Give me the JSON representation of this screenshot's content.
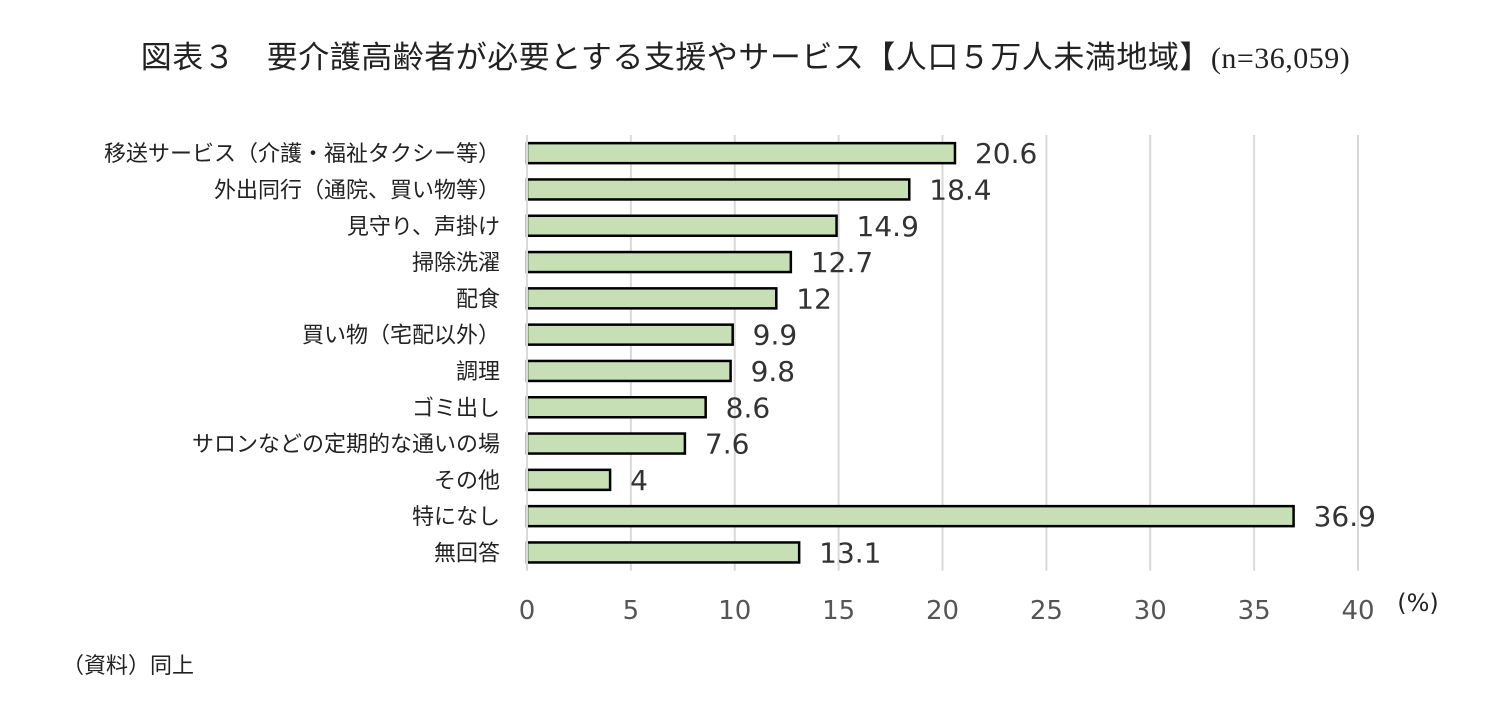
{
  "title": "図表３　要介護高齢者が必要とする支援やサービス【人口５万人未満地域】",
  "title_n": "(n=36,059)",
  "source": "（資料）同上",
  "chart_data": {
    "type": "bar",
    "orientation": "horizontal",
    "categories": [
      "移送サービス（介護・福祉タクシー等）",
      "外出同行（通院、買い物等）",
      "見守り、声掛け",
      "掃除洗濯",
      "配食",
      "買い物（宅配以外）",
      "調理",
      "ゴミ出し",
      "サロンなどの定期的な通いの場",
      "その他",
      "特になし",
      "無回答"
    ],
    "values": [
      20.6,
      18.4,
      14.9,
      12.7,
      12,
      9.9,
      9.8,
      8.6,
      7.6,
      4,
      36.9,
      13.1
    ],
    "data_labels": [
      "20.6",
      "18.4",
      "14.9",
      "12.7",
      "12",
      "9.9",
      "9.8",
      "8.6",
      "7.6",
      "4",
      "36.9",
      "13.1"
    ],
    "xlim": [
      0,
      40
    ],
    "x_ticks": [
      "0",
      "5",
      "10",
      "15",
      "20",
      "25",
      "30",
      "35",
      "40"
    ],
    "x_unit": "(%)",
    "grid": "vertical",
    "bar_color": "#c6dfb4",
    "bar_edge_color": "#000000"
  }
}
